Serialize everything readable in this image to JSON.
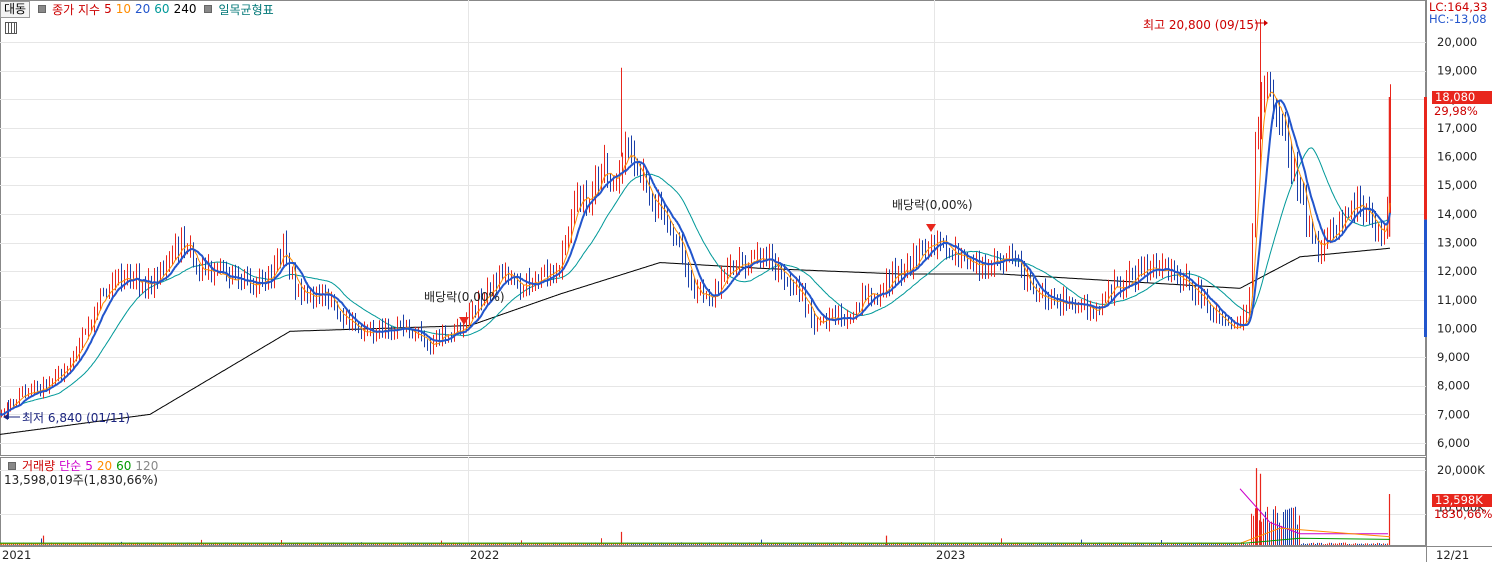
{
  "header": {
    "button": "대동",
    "indicator": "종가 지수",
    "ma_periods": [
      "5",
      "10",
      "20",
      "60",
      "240"
    ],
    "ma_colors": [
      "#cc0000",
      "#ff8c00",
      "#2255cc",
      "#009999",
      "#000000"
    ],
    "ichimoku": "일목균형표"
  },
  "right_top": {
    "lc": "LC:164,33",
    "hc": "HC:-13,08"
  },
  "price_panel": {
    "current_price": "18,080",
    "current_pct": "29,98%",
    "high_label": "최고 20,800 (09/15)",
    "low_label": "최저 6,840 (01/11)",
    "dividend_label": "배당락(0,00%)"
  },
  "volume_panel": {
    "title": "거래량",
    "mode": "단순",
    "ma_periods": [
      "5",
      "20",
      "60",
      "120"
    ],
    "ma_colors": [
      "#cc00cc",
      "#ff8c00",
      "#009900",
      "#888888"
    ],
    "value_text": "13,598,019주(1,830,66%)",
    "current_volume": "13,598K",
    "current_pct": "1830,66%"
  },
  "chart_data": {
    "type": "candlestick",
    "y_axis_ticks": [
      "6,000",
      "7,000",
      "8,000",
      "9,000",
      "10,000",
      "11,000",
      "12,000",
      "13,000",
      "14,000",
      "15,000",
      "16,000",
      "17,000",
      "18,000",
      "19,000",
      "20,000"
    ],
    "ylim": [
      5500,
      20800
    ],
    "volume_axis_ticks": [
      "10,000K",
      "20,000K"
    ],
    "volume_ylim": [
      0,
      24000
    ],
    "x_axis_labels": [
      "2021",
      "2022",
      "2023",
      "12/21"
    ],
    "grid": true,
    "close_keypoints": [
      [
        0,
        6900
      ],
      [
        8,
        7400
      ],
      [
        25,
        7700
      ],
      [
        45,
        8000
      ],
      [
        65,
        8600
      ],
      [
        80,
        9500
      ],
      [
        100,
        11000
      ],
      [
        120,
        11800
      ],
      [
        150,
        11500
      ],
      [
        170,
        12300
      ],
      [
        185,
        13100
      ],
      [
        200,
        12000
      ],
      [
        230,
        11800
      ],
      [
        250,
        11500
      ],
      [
        270,
        11800
      ],
      [
        283,
        12900
      ],
      [
        295,
        11400
      ],
      [
        310,
        11000
      ],
      [
        325,
        11300
      ],
      [
        340,
        10400
      ],
      [
        360,
        9900
      ],
      [
        380,
        9900
      ],
      [
        400,
        10000
      ],
      [
        415,
        9900
      ],
      [
        428,
        9400
      ],
      [
        445,
        9800
      ],
      [
        462,
        10000
      ],
      [
        475,
        10700
      ],
      [
        490,
        11400
      ],
      [
        505,
        12000
      ],
      [
        520,
        11500
      ],
      [
        540,
        11700
      ],
      [
        560,
        12300
      ],
      [
        575,
        14400
      ],
      [
        590,
        14600
      ],
      [
        605,
        15500
      ],
      [
        615,
        15200
      ],
      [
        625,
        16200
      ],
      [
        635,
        15600
      ],
      [
        650,
        14500
      ],
      [
        665,
        14100
      ],
      [
        680,
        12700
      ],
      [
        695,
        11200
      ],
      [
        710,
        11000
      ],
      [
        725,
        11800
      ],
      [
        740,
        12300
      ],
      [
        760,
        12400
      ],
      [
        780,
        12100
      ],
      [
        800,
        11200
      ],
      [
        815,
        10100
      ],
      [
        830,
        10400
      ],
      [
        850,
        10300
      ],
      [
        865,
        11300
      ],
      [
        880,
        11100
      ],
      [
        895,
        12000
      ],
      [
        910,
        12100
      ],
      [
        925,
        12900
      ],
      [
        940,
        13100
      ],
      [
        955,
        12500
      ],
      [
        975,
        12200
      ],
      [
        995,
        12400
      ],
      [
        1015,
        12500
      ],
      [
        1030,
        11300
      ],
      [
        1050,
        11000
      ],
      [
        1065,
        10900
      ],
      [
        1080,
        10800
      ],
      [
        1095,
        10700
      ],
      [
        1110,
        11300
      ],
      [
        1130,
        11700
      ],
      [
        1150,
        12100
      ],
      [
        1170,
        12000
      ],
      [
        1185,
        11600
      ],
      [
        1200,
        11100
      ],
      [
        1215,
        10500
      ],
      [
        1232,
        10000
      ],
      [
        1248,
        10300
      ],
      [
        1256,
        17000
      ],
      [
        1264,
        18500
      ],
      [
        1272,
        18000
      ],
      [
        1282,
        17200
      ],
      [
        1292,
        15500
      ],
      [
        1300,
        15000
      ],
      [
        1310,
        13000
      ],
      [
        1320,
        12800
      ],
      [
        1332,
        13200
      ],
      [
        1345,
        13900
      ],
      [
        1358,
        14500
      ],
      [
        1370,
        13800
      ],
      [
        1380,
        13300
      ],
      [
        1386,
        13500
      ],
      [
        1390,
        18080
      ]
    ],
    "ma_series": [
      "MA5",
      "MA10",
      "MA20",
      "MA60",
      "MA240"
    ],
    "annotations": [
      {
        "label": "최고 20,800 (09/15)",
        "value": 20800
      },
      {
        "label": "최저 6,840 (01/11)",
        "value": 6840
      },
      {
        "label": "배당락(0,00%)"
      },
      {
        "label": "배당락(0,00%)"
      }
    ]
  }
}
